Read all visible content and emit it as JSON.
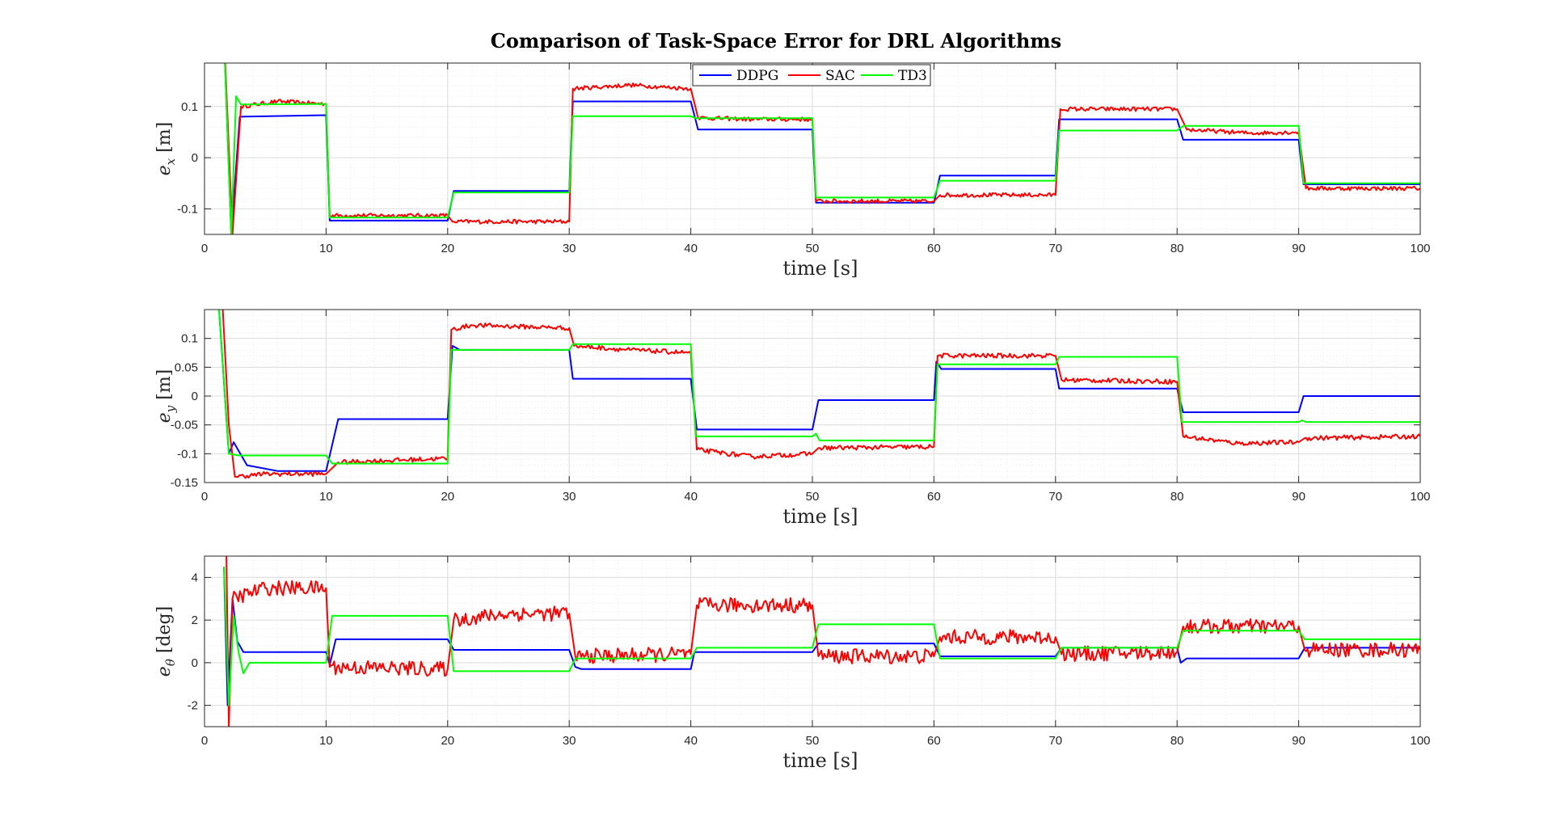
{
  "title": "Comparison of Task-Space Error for DRL Algorithms",
  "legend": {
    "placement": "top-center",
    "entries": [
      {
        "name": "DDPG",
        "color": "#0000ff"
      },
      {
        "name": "SAC",
        "color": "#ff0000"
      },
      {
        "name": "TD3",
        "color": "#00ff00"
      }
    ]
  },
  "chart_data": [
    {
      "type": "line",
      "xlabel": "time [s]",
      "ylabel": "e_x [m]",
      "ylabel_main": "e",
      "ylabel_sub": "x",
      "ylabel_unit": "[m]",
      "xlim": [
        0,
        100
      ],
      "ylim": [
        -0.15,
        0.185
      ],
      "xticks": [
        0,
        10,
        20,
        30,
        40,
        50,
        60,
        70,
        80,
        90,
        100
      ],
      "yticks": [
        -0.1,
        0,
        0.1
      ],
      "ytick_labels": [
        "-0.1",
        "0",
        "0.1"
      ],
      "grid": true,
      "series": [
        {
          "name": "DDPG",
          "color": "#0000ff",
          "noise": 0,
          "points": [
            [
              1.5,
              0.3
            ],
            [
              2.2,
              -0.15
            ],
            [
              2.9,
              0.08
            ],
            [
              10,
              0.083
            ],
            [
              10.3,
              -0.123
            ],
            [
              20,
              -0.123
            ],
            [
              20.5,
              -0.065
            ],
            [
              30,
              -0.065
            ],
            [
              30.3,
              0.11
            ],
            [
              40,
              0.11
            ],
            [
              40.6,
              0.055
            ],
            [
              50,
              0.055
            ],
            [
              50.3,
              -0.088
            ],
            [
              60,
              -0.088
            ],
            [
              60.5,
              -0.035
            ],
            [
              70,
              -0.035
            ],
            [
              70.3,
              0.075
            ],
            [
              80,
              0.075
            ],
            [
              80.5,
              0.035
            ],
            [
              90,
              0.035
            ],
            [
              90.4,
              -0.052
            ],
            [
              100,
              -0.052
            ]
          ]
        },
        {
          "name": "SAC",
          "color": "#ff0000",
          "noise": 0.004,
          "points": [
            [
              1.5,
              0.3
            ],
            [
              2.3,
              -0.15
            ],
            [
              3.0,
              0.1
            ],
            [
              6,
              0.11
            ],
            [
              10,
              0.105
            ],
            [
              10.3,
              -0.113
            ],
            [
              20,
              -0.113
            ],
            [
              20.4,
              -0.125
            ],
            [
              30,
              -0.125
            ],
            [
              30.3,
              0.135
            ],
            [
              35,
              0.142
            ],
            [
              40,
              0.135
            ],
            [
              40.6,
              0.078
            ],
            [
              45,
              0.075
            ],
            [
              50,
              0.075
            ],
            [
              50.3,
              -0.085
            ],
            [
              60,
              -0.085
            ],
            [
              60.5,
              -0.073
            ],
            [
              70,
              -0.073
            ],
            [
              70.4,
              0.095
            ],
            [
              80,
              0.095
            ],
            [
              80.8,
              0.055
            ],
            [
              86,
              0.048
            ],
            [
              90,
              0.05
            ],
            [
              90.6,
              -0.06
            ],
            [
              100,
              -0.06
            ]
          ]
        },
        {
          "name": "TD3",
          "color": "#00ff00",
          "noise": 0,
          "points": [
            [
              1.5,
              0.3
            ],
            [
              2.2,
              -0.15
            ],
            [
              2.6,
              0.12
            ],
            [
              3.0,
              0.104
            ],
            [
              10,
              0.105
            ],
            [
              10.3,
              -0.117
            ],
            [
              20,
              -0.117
            ],
            [
              20.5,
              -0.068
            ],
            [
              30,
              -0.068
            ],
            [
              30.3,
              0.081
            ],
            [
              40,
              0.081
            ],
            [
              40.4,
              0.077
            ],
            [
              50,
              0.077
            ],
            [
              50.3,
              -0.078
            ],
            [
              60,
              -0.078
            ],
            [
              60.5,
              -0.045
            ],
            [
              70,
              -0.045
            ],
            [
              70.3,
              0.053
            ],
            [
              80,
              0.053
            ],
            [
              80.5,
              0.062
            ],
            [
              90,
              0.062
            ],
            [
              90.4,
              -0.05
            ],
            [
              100,
              -0.05
            ]
          ]
        }
      ]
    },
    {
      "type": "line",
      "xlabel": "time [s]",
      "ylabel": "e_y [m]",
      "ylabel_main": "e",
      "ylabel_sub": "y",
      "ylabel_unit": "[m]",
      "xlim": [
        0,
        100
      ],
      "ylim": [
        -0.15,
        0.15
      ],
      "xticks": [
        0,
        10,
        20,
        30,
        40,
        50,
        60,
        70,
        80,
        90,
        100
      ],
      "yticks": [
        -0.15,
        -0.1,
        -0.05,
        0,
        0.05,
        0.1
      ],
      "ytick_labels": [
        "-0.15",
        "-0.1",
        "-0.05",
        "0",
        "0.05",
        "0.1"
      ],
      "grid": true,
      "series": [
        {
          "name": "DDPG",
          "color": "#0000ff",
          "noise": 0,
          "points": [
            [
              1.2,
              0.15
            ],
            [
              2.0,
              -0.1
            ],
            [
              2.4,
              -0.08
            ],
            [
              3.5,
              -0.12
            ],
            [
              6,
              -0.13
            ],
            [
              10,
              -0.13
            ],
            [
              11,
              -0.04
            ],
            [
              20,
              -0.04
            ],
            [
              20.4,
              0.087
            ],
            [
              21,
              0.08
            ],
            [
              30,
              0.08
            ],
            [
              30.3,
              0.03
            ],
            [
              40,
              0.03
            ],
            [
              40.5,
              -0.058
            ],
            [
              50,
              -0.058
            ],
            [
              50.5,
              -0.007
            ],
            [
              60,
              -0.007
            ],
            [
              60.2,
              0.06
            ],
            [
              60.6,
              0.047
            ],
            [
              70,
              0.047
            ],
            [
              70.3,
              0.013
            ],
            [
              80,
              0.013
            ],
            [
              80.5,
              -0.028
            ],
            [
              90,
              -0.028
            ],
            [
              90.4,
              0
            ],
            [
              100,
              0
            ]
          ]
        },
        {
          "name": "SAC",
          "color": "#ff0000",
          "noise": 0.004,
          "points": [
            [
              1.5,
              0.15
            ],
            [
              2.0,
              -0.05
            ],
            [
              2.5,
              -0.14
            ],
            [
              5,
              -0.135
            ],
            [
              10,
              -0.135
            ],
            [
              11,
              -0.115
            ],
            [
              20,
              -0.108
            ],
            [
              20.3,
              0.115
            ],
            [
              22,
              0.123
            ],
            [
              30,
              0.118
            ],
            [
              30.4,
              0.087
            ],
            [
              35,
              0.08
            ],
            [
              40,
              0.075
            ],
            [
              40.5,
              -0.093
            ],
            [
              45,
              -0.105
            ],
            [
              50,
              -0.1
            ],
            [
              50.5,
              -0.09
            ],
            [
              60,
              -0.088
            ],
            [
              60.3,
              0.07
            ],
            [
              70,
              0.07
            ],
            [
              70.5,
              0.028
            ],
            [
              80,
              0.025
            ],
            [
              80.5,
              -0.07
            ],
            [
              85,
              -0.082
            ],
            [
              90,
              -0.08
            ],
            [
              90.5,
              -0.073
            ],
            [
              100,
              -0.07
            ]
          ]
        },
        {
          "name": "TD3",
          "color": "#00ff00",
          "noise": 0,
          "points": [
            [
              1.2,
              0.15
            ],
            [
              2.0,
              -0.1
            ],
            [
              2.8,
              -0.103
            ],
            [
              10,
              -0.103
            ],
            [
              10.5,
              -0.117
            ],
            [
              20,
              -0.117
            ],
            [
              20.3,
              0.08
            ],
            [
              30,
              0.08
            ],
            [
              30.3,
              0.09
            ],
            [
              40,
              0.09
            ],
            [
              40.4,
              -0.07
            ],
            [
              50,
              -0.07
            ],
            [
              50.3,
              -0.065
            ],
            [
              50.6,
              -0.077
            ],
            [
              60,
              -0.077
            ],
            [
              60.3,
              0.055
            ],
            [
              70,
              0.055
            ],
            [
              70.3,
              0.068
            ],
            [
              80,
              0.068
            ],
            [
              80.4,
              -0.045
            ],
            [
              90,
              -0.045
            ],
            [
              90.3,
              -0.042
            ],
            [
              90.6,
              -0.045
            ],
            [
              100,
              -0.045
            ]
          ]
        }
      ]
    },
    {
      "type": "line",
      "xlabel": "time [s]",
      "ylabel": "e_θ [deg]",
      "ylabel_main": "e",
      "ylabel_sub": "θ",
      "ylabel_unit": "[deg]",
      "xlim": [
        0,
        100
      ],
      "ylim": [
        -3,
        5
      ],
      "xticks": [
        0,
        10,
        20,
        30,
        40,
        50,
        60,
        70,
        80,
        90,
        100
      ],
      "yticks": [
        -2,
        0,
        2,
        4
      ],
      "ytick_labels": [
        "-2",
        "0",
        "2",
        "4"
      ],
      "grid": true,
      "series": [
        {
          "name": "DDPG",
          "color": "#0000ff",
          "noise": 0,
          "points": [
            [
              1.6,
              4.5
            ],
            [
              1.9,
              -2
            ],
            [
              2.3,
              3.0
            ],
            [
              2.7,
              1.0
            ],
            [
              3.2,
              0.5
            ],
            [
              10,
              0.5
            ],
            [
              10.3,
              -0.1
            ],
            [
              10.8,
              1.1
            ],
            [
              20,
              1.1
            ],
            [
              20.5,
              0.6
            ],
            [
              30,
              0.6
            ],
            [
              30.5,
              -0.2
            ],
            [
              31,
              -0.3
            ],
            [
              40,
              -0.3
            ],
            [
              40.3,
              0.5
            ],
            [
              50,
              0.5
            ],
            [
              50.5,
              0.9
            ],
            [
              60,
              0.9
            ],
            [
              60.5,
              0.3
            ],
            [
              70,
              0.3
            ],
            [
              70.5,
              0.7
            ],
            [
              80,
              0.7
            ],
            [
              80.3,
              0
            ],
            [
              80.8,
              0.2
            ],
            [
              90,
              0.2
            ],
            [
              90.5,
              0.7
            ],
            [
              100,
              0.7
            ]
          ]
        },
        {
          "name": "SAC",
          "color": "#ff0000",
          "noise": 0.35,
          "points": [
            [
              1.8,
              5
            ],
            [
              2.0,
              -3
            ],
            [
              2.3,
              3.0
            ],
            [
              5,
              3.5
            ],
            [
              10,
              3.5
            ],
            [
              10.3,
              -0.2
            ],
            [
              20,
              -0.3
            ],
            [
              20.5,
              2.0
            ],
            [
              25,
              2.3
            ],
            [
              30,
              2.3
            ],
            [
              30.5,
              0.3
            ],
            [
              40,
              0.4
            ],
            [
              40.5,
              2.7
            ],
            [
              50,
              2.7
            ],
            [
              50.5,
              0.3
            ],
            [
              60,
              0.3
            ],
            [
              60.5,
              1.2
            ],
            [
              70,
              1.2
            ],
            [
              70.5,
              0.4
            ],
            [
              80,
              0.5
            ],
            [
              80.5,
              1.7
            ],
            [
              90,
              1.7
            ],
            [
              90.5,
              0.6
            ],
            [
              100,
              0.6
            ]
          ]
        },
        {
          "name": "TD3",
          "color": "#00ff00",
          "noise": 0,
          "points": [
            [
              1.6,
              4.5
            ],
            [
              2.0,
              -2
            ],
            [
              2.4,
              2.2
            ],
            [
              2.8,
              0.5
            ],
            [
              3.2,
              -0.5
            ],
            [
              3.7,
              0
            ],
            [
              10,
              0
            ],
            [
              10.5,
              2.2
            ],
            [
              20,
              2.2
            ],
            [
              20.5,
              -0.4
            ],
            [
              30,
              -0.4
            ],
            [
              30.5,
              0.2
            ],
            [
              40,
              0.2
            ],
            [
              40.5,
              0.7
            ],
            [
              50,
              0.7
            ],
            [
              50.5,
              1.8
            ],
            [
              60,
              1.8
            ],
            [
              60.5,
              0.2
            ],
            [
              70,
              0.2
            ],
            [
              70.5,
              0.7
            ],
            [
              80,
              0.7
            ],
            [
              80.5,
              1.5
            ],
            [
              90,
              1.5
            ],
            [
              90.5,
              1.1
            ],
            [
              100,
              1.1
            ]
          ]
        }
      ]
    }
  ]
}
